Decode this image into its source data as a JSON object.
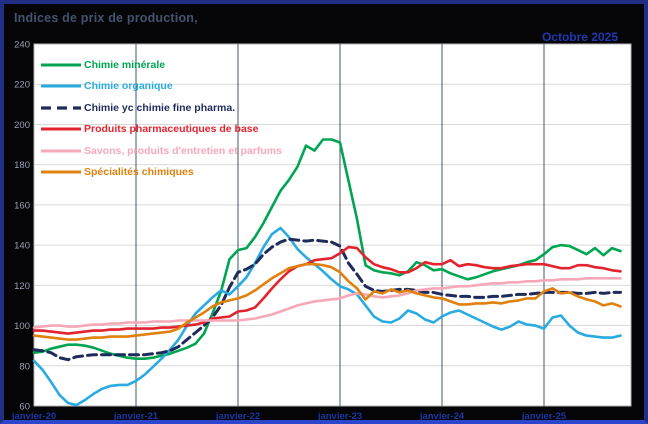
{
  "header": {
    "title": "Indices de prix de production,",
    "period": "Octobre 2025"
  },
  "colors": {
    "frame_border": "#202e84",
    "frame_border_bottom": "#2b46cc",
    "background": "#050507",
    "plot_background": "#ffffff",
    "plot_border": "#b3b3b3",
    "h_gridline": "#d9d9d9",
    "v_gridline": "#44546a",
    "title_text": "#44536f",
    "period_text": "#2138b0",
    "x_tick_text": "#1b36a3",
    "y_tick_text": "#98a1b2"
  },
  "chart_data": {
    "type": "line",
    "title": "Indices de prix de production",
    "subtitle_period": "Octobre 2025",
    "xlabel": "",
    "ylabel": "",
    "ylim": [
      60,
      240
    ],
    "y_tick_step": 20,
    "y_tick_labels": [
      "60",
      "80",
      "100",
      "120",
      "140",
      "160",
      "180",
      "200",
      "220",
      "240"
    ],
    "x_tick_labels": [
      "janvier-20",
      "janvier-21",
      "janvier-22",
      "janvier-23",
      "janvier-24",
      "janvier-25"
    ],
    "x_domain": {
      "start": "janvier-2020",
      "end": "octobre-2025",
      "points": 70,
      "months_per_gridline": 12
    },
    "grid": {
      "horizontal": true,
      "vertical": true
    },
    "legend_position": "top-left-inside",
    "series": [
      {
        "name": "Chimie minérale",
        "color": "#00a551",
        "dash": null,
        "values": [
          86.5,
          87,
          88.5,
          89.5,
          90.5,
          90.5,
          90,
          89,
          87.5,
          86,
          85,
          84,
          83.5,
          83.5,
          84,
          85,
          86,
          87.5,
          89,
          91,
          96,
          106,
          117,
          133,
          137.5,
          138.5,
          144,
          151,
          159,
          167,
          172.5,
          179,
          189.5,
          187,
          192.5,
          192.5,
          191,
          172,
          153,
          130,
          127.5,
          126.5,
          126,
          125,
          127,
          131.5,
          130,
          127.5,
          128,
          126,
          124.5,
          123,
          124,
          125.5,
          127,
          128,
          129,
          130,
          131.5,
          132.5,
          135.5,
          139,
          140,
          139.5,
          137.5,
          135.5,
          138.5,
          135,
          138.5,
          137
        ]
      },
      {
        "name": "Chimie organique",
        "color": "#29abe2",
        "dash": null,
        "values": [
          82.5,
          78,
          72,
          65.5,
          61.5,
          60.5,
          63,
          66,
          68.5,
          70,
          70.5,
          70.5,
          72.5,
          75.5,
          79.5,
          83.5,
          88,
          93,
          100,
          106,
          110,
          114,
          117.5,
          115.5,
          119.5,
          124,
          131,
          139,
          145.5,
          148.5,
          144,
          138,
          134,
          130.5,
          127,
          123,
          119.5,
          118,
          115.5,
          110,
          104.5,
          102,
          101.5,
          103.5,
          107.5,
          106,
          103,
          101.5,
          104.5,
          106.5,
          107.5,
          105.5,
          103.5,
          101.5,
          99.5,
          98,
          99.5,
          102,
          100.5,
          100,
          98.5,
          104,
          105,
          100,
          96.5,
          95,
          94.5,
          94,
          94,
          95
        ]
      },
      {
        "name": "Chimie yc chimie fine pharma.",
        "color": "#1f2b5b",
        "dash": "9,5",
        "values": [
          88,
          87.5,
          86.5,
          84,
          83,
          84.5,
          85,
          85.5,
          85.5,
          85.5,
          85.5,
          85.5,
          85.5,
          85.5,
          86,
          86.5,
          87.5,
          89.5,
          93,
          96.5,
          100,
          104,
          110,
          119,
          126.5,
          128,
          130.5,
          135.5,
          139,
          141.5,
          143,
          142.5,
          142,
          142.5,
          142,
          141.5,
          139.5,
          131,
          125.5,
          119.5,
          117.5,
          117,
          117.5,
          118,
          118,
          117.5,
          116.5,
          116.5,
          115.5,
          115,
          114.5,
          114.5,
          114,
          114,
          114.5,
          114.5,
          115,
          115.5,
          115.5,
          116,
          116.5,
          116.5,
          116.5,
          116.5,
          116,
          116,
          116.5,
          116,
          116.5,
          116.5
        ]
      },
      {
        "name": "Produits pharmaceutiques de base",
        "color": "#e2242e",
        "dash": null,
        "values": [
          97.5,
          97.5,
          97,
          96.5,
          96,
          96.5,
          97,
          97.5,
          97.5,
          98,
          98,
          98.5,
          98.5,
          98.5,
          98.5,
          99,
          99,
          99.5,
          100,
          100.5,
          101.5,
          103.5,
          104,
          104.5,
          107,
          107.5,
          109,
          113.5,
          118.5,
          123,
          127,
          129.5,
          130.5,
          132.5,
          133,
          133.5,
          136,
          139,
          138.5,
          134,
          130.5,
          129,
          128,
          126.5,
          126.5,
          128.5,
          131.5,
          130.5,
          130.5,
          132.5,
          129.5,
          130.5,
          130,
          129,
          128.5,
          128.5,
          129.5,
          130,
          130.5,
          130.5,
          130.5,
          129.5,
          128.5,
          128.5,
          130,
          130,
          129,
          128.5,
          127.5,
          127
        ]
      },
      {
        "name": "Savons, produits d'entretien et parfums",
        "color": "#f7a8b8",
        "dash": null,
        "values": [
          99,
          99.5,
          100,
          100,
          99.5,
          99.5,
          100,
          100.5,
          100.5,
          101,
          101,
          101.5,
          101.5,
          101.5,
          102,
          102,
          102,
          102.5,
          102.5,
          102.5,
          102.5,
          102.5,
          102.5,
          102.5,
          102.5,
          103,
          103.5,
          104.5,
          105.5,
          107,
          108.5,
          110,
          111,
          112,
          112.5,
          113,
          113.5,
          115,
          116,
          115.5,
          114.5,
          114,
          114.5,
          115,
          116,
          117.5,
          118,
          118.5,
          118.5,
          119,
          119.5,
          119.5,
          120,
          120.5,
          121,
          121,
          121.5,
          121.5,
          122,
          122,
          122.5,
          122.5,
          123,
          123,
          123,
          123.5,
          123.5,
          123.5,
          123.5,
          123.5
        ]
      },
      {
        "name": "Spécialités chimiques",
        "color": "#e0810f",
        "dash": null,
        "values": [
          95,
          94.5,
          94,
          93.5,
          93,
          93,
          93.5,
          94,
          94,
          94.5,
          94.5,
          94.5,
          95,
          95.5,
          96,
          96.5,
          97,
          98.5,
          101.5,
          104,
          106.5,
          109.5,
          111.5,
          112.5,
          113.5,
          115,
          117.5,
          120.5,
          123.5,
          126,
          128.5,
          129.5,
          130.5,
          130.5,
          130,
          129,
          126.5,
          122,
          118.5,
          113,
          117,
          116,
          118,
          116.5,
          117.5,
          116,
          115,
          114,
          113.5,
          112,
          110.5,
          110.5,
          111,
          111,
          111.5,
          111,
          112,
          112.5,
          113.5,
          113.5,
          117,
          118.5,
          116,
          116.5,
          114.5,
          113,
          112,
          110,
          111,
          109.5
        ]
      }
    ]
  }
}
